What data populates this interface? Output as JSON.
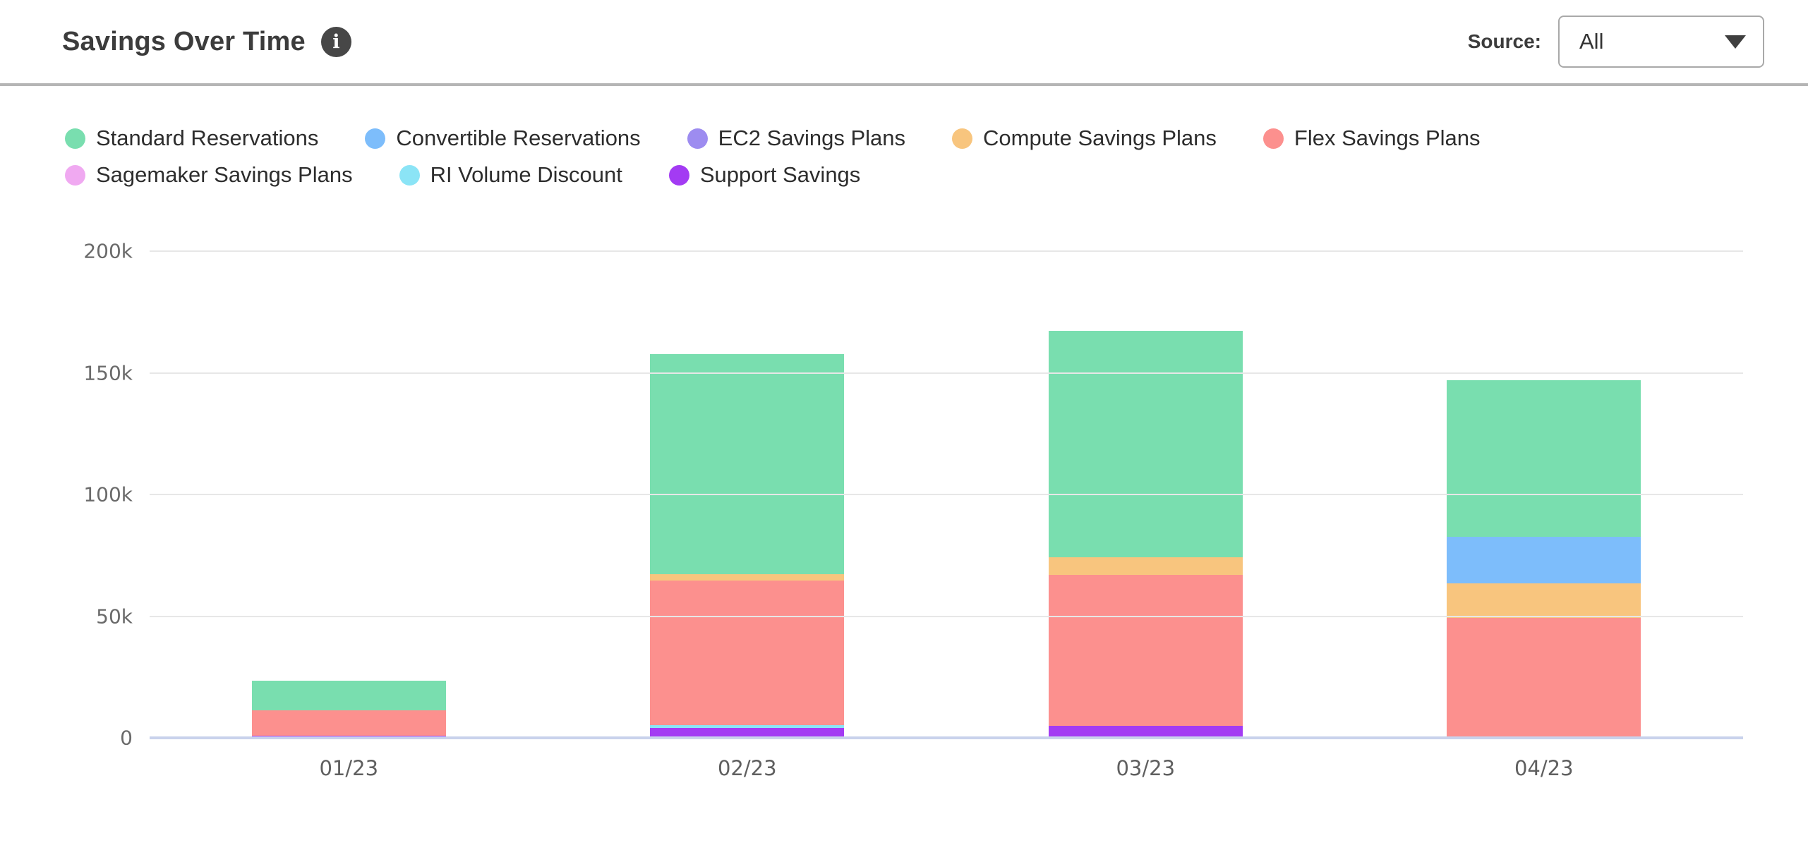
{
  "header": {
    "title": "Savings Over Time",
    "info_icon": "i",
    "source_label": "Source:",
    "source_value": "All"
  },
  "chart_data": {
    "type": "bar",
    "stacked": true,
    "title": "Savings Over Time",
    "unit": "USD thousands",
    "categories": [
      "01/23",
      "02/23",
      "03/23",
      "04/23"
    ],
    "ylim": [
      0,
      200
    ],
    "yticks": [
      {
        "label": "200k",
        "value": 200
      },
      {
        "label": "150k",
        "value": 150
      },
      {
        "label": "100k",
        "value": 100
      },
      {
        "label": "50k",
        "value": 50
      },
      {
        "label": "0",
        "value": 0
      }
    ],
    "grid": true,
    "legend_position": "top",
    "stack_order": "reverse-legend (Support Savings at bottom, Standard Reservations on top)",
    "series": [
      {
        "name": "Standard Reservations",
        "color": "#79DEAF",
        "values": [
          12.1,
          90.5,
          93.3,
          64.4
        ]
      },
      {
        "name": "Convertible Reservations",
        "color": "#7DBDFB",
        "values": [
          0,
          0,
          0,
          19.2
        ]
      },
      {
        "name": "EC2 Savings Plans",
        "color": "#9D8CF0",
        "values": [
          0,
          0,
          0,
          0
        ]
      },
      {
        "name": "Compute Savings Plans",
        "color": "#F8C57E",
        "values": [
          0,
          2.6,
          7,
          14
        ]
      },
      {
        "name": "Flex Savings Plans",
        "color": "#FC908E",
        "values": [
          10.4,
          59.5,
          62.1,
          49.4
        ]
      },
      {
        "name": "Sagemaker Savings Plans",
        "color": "#F0A9F1",
        "values": [
          0,
          0,
          0,
          0
        ]
      },
      {
        "name": "RI Volume Discount",
        "color": "#8BE4F6",
        "values": [
          0,
          0.9,
          0,
          0
        ]
      },
      {
        "name": "Support Savings",
        "color": "#A33BF3",
        "values": [
          1,
          4.2,
          5,
          0
        ]
      }
    ],
    "totals": [
      23.5,
      157.7,
      167.4,
      147.0
    ]
  },
  "colors": {
    "axis_line": "#C9D2EC",
    "gridline": "#E7E7E7",
    "header_divider": "#B5B5B5",
    "title_text": "#3C3C3C",
    "legend_text": "#2D2D2D",
    "ytick_text": "#6A6A6A",
    "xtick_text": "#5F5F5F"
  },
  "layout": {
    "legend_row_split": 5
  }
}
